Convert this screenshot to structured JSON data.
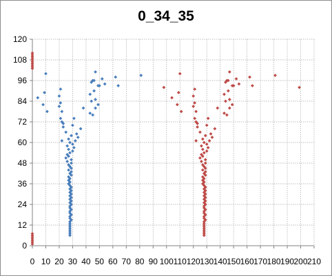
{
  "chart_data": {
    "type": "scatter",
    "title": "0_34_35",
    "xlabel": "",
    "ylabel": "",
    "xlim": [
      0,
      210
    ],
    "ylim": [
      0,
      120
    ],
    "x_ticks": [
      0,
      10,
      20,
      30,
      40,
      50,
      60,
      70,
      80,
      90,
      100,
      110,
      120,
      130,
      140,
      150,
      160,
      170,
      180,
      190,
      200,
      210
    ],
    "y_ticks": [
      0,
      12,
      24,
      36,
      48,
      60,
      72,
      84,
      96,
      108,
      120
    ],
    "grid": true,
    "legend": "none",
    "series": [
      {
        "color": "#4a7ebb",
        "points": [
          [
            28,
            6
          ],
          [
            28,
            7
          ],
          [
            28,
            8
          ],
          [
            28,
            9
          ],
          [
            28,
            10
          ],
          [
            28,
            11
          ],
          [
            28,
            12
          ],
          [
            28,
            13
          ],
          [
            28,
            14
          ],
          [
            29,
            15
          ],
          [
            28,
            16
          ],
          [
            28,
            17
          ],
          [
            29,
            18
          ],
          [
            28,
            19
          ],
          [
            28,
            20
          ],
          [
            29,
            21
          ],
          [
            28,
            22
          ],
          [
            28,
            23
          ],
          [
            29,
            24
          ],
          [
            28,
            25
          ],
          [
            29,
            26
          ],
          [
            28,
            27
          ],
          [
            29,
            28
          ],
          [
            28,
            29
          ],
          [
            29,
            30
          ],
          [
            28,
            31
          ],
          [
            29,
            32
          ],
          [
            28,
            33
          ],
          [
            29,
            34
          ],
          [
            28,
            35
          ],
          [
            27,
            36
          ],
          [
            28,
            37
          ],
          [
            27,
            38
          ],
          [
            28,
            39
          ],
          [
            27,
            40
          ],
          [
            29,
            41
          ],
          [
            28,
            42
          ],
          [
            29,
            43
          ],
          [
            27,
            44
          ],
          [
            29,
            45
          ],
          [
            28,
            46
          ],
          [
            27,
            47
          ],
          [
            29,
            48
          ],
          [
            26,
            49
          ],
          [
            29,
            50
          ],
          [
            25,
            51
          ],
          [
            27,
            52
          ],
          [
            26,
            53
          ],
          [
            28,
            54
          ],
          [
            30,
            55
          ],
          [
            27,
            56
          ],
          [
            31,
            57
          ],
          [
            26,
            58
          ],
          [
            30,
            59
          ],
          [
            28,
            60
          ],
          [
            32,
            61
          ],
          [
            27,
            62
          ],
          [
            34,
            63
          ],
          [
            29,
            64
          ],
          [
            33,
            65
          ],
          [
            25,
            66
          ],
          [
            36,
            68
          ],
          [
            30,
            70
          ],
          [
            23,
            71
          ],
          [
            31,
            74
          ],
          [
            22,
            72
          ],
          [
            21,
            74
          ],
          [
            23,
            69
          ],
          [
            38,
            80
          ],
          [
            20,
            81
          ],
          [
            21,
            83
          ],
          [
            22,
            78
          ],
          [
            20,
            87
          ],
          [
            21,
            91
          ],
          [
            45,
            76
          ],
          [
            43,
            77
          ],
          [
            47,
            80
          ],
          [
            47,
            85
          ],
          [
            44,
            84
          ],
          [
            49,
            82
          ],
          [
            43,
            88
          ],
          [
            46,
            90
          ],
          [
            49,
            93
          ],
          [
            44,
            95
          ],
          [
            45,
            96
          ],
          [
            46,
            96
          ],
          [
            47,
            101
          ],
          [
            50,
            93
          ],
          [
            52,
            97
          ],
          [
            54,
            94
          ],
          [
            62,
            98
          ],
          [
            64,
            93
          ],
          [
            81,
            99
          ],
          [
            10,
            100
          ],
          [
            4,
            86
          ],
          [
            8,
            82
          ],
          [
            11,
            78
          ],
          [
            9,
            89
          ],
          [
            22,
            61
          ]
        ]
      },
      {
        "color": "#be4b48",
        "points": [
          [
            128,
            6
          ],
          [
            128,
            7
          ],
          [
            128,
            8
          ],
          [
            128,
            9
          ],
          [
            128,
            10
          ],
          [
            128,
            11
          ],
          [
            128,
            12
          ],
          [
            128,
            13
          ],
          [
            128,
            14
          ],
          [
            129,
            15
          ],
          [
            128,
            16
          ],
          [
            128,
            17
          ],
          [
            129,
            18
          ],
          [
            128,
            19
          ],
          [
            128,
            20
          ],
          [
            129,
            21
          ],
          [
            128,
            22
          ],
          [
            128,
            23
          ],
          [
            129,
            24
          ],
          [
            128,
            25
          ],
          [
            129,
            26
          ],
          [
            128,
            27
          ],
          [
            129,
            28
          ],
          [
            128,
            29
          ],
          [
            129,
            30
          ],
          [
            128,
            31
          ],
          [
            129,
            32
          ],
          [
            128,
            33
          ],
          [
            129,
            34
          ],
          [
            128,
            35
          ],
          [
            127,
            36
          ],
          [
            128,
            37
          ],
          [
            127,
            38
          ],
          [
            128,
            39
          ],
          [
            127,
            40
          ],
          [
            129,
            41
          ],
          [
            128,
            42
          ],
          [
            129,
            43
          ],
          [
            127,
            44
          ],
          [
            129,
            45
          ],
          [
            128,
            46
          ],
          [
            127,
            47
          ],
          [
            129,
            48
          ],
          [
            126,
            49
          ],
          [
            129,
            50
          ],
          [
            125,
            51
          ],
          [
            127,
            52
          ],
          [
            126,
            53
          ],
          [
            128,
            54
          ],
          [
            130,
            55
          ],
          [
            127,
            56
          ],
          [
            131,
            57
          ],
          [
            126,
            58
          ],
          [
            130,
            59
          ],
          [
            128,
            60
          ],
          [
            132,
            61
          ],
          [
            127,
            62
          ],
          [
            134,
            63
          ],
          [
            129,
            64
          ],
          [
            133,
            65
          ],
          [
            125,
            66
          ],
          [
            136,
            68
          ],
          [
            130,
            70
          ],
          [
            123,
            71
          ],
          [
            131,
            74
          ],
          [
            122,
            72
          ],
          [
            121,
            74
          ],
          [
            123,
            69
          ],
          [
            138,
            80
          ],
          [
            120,
            81
          ],
          [
            121,
            83
          ],
          [
            122,
            78
          ],
          [
            120,
            87
          ],
          [
            121,
            91
          ],
          [
            145,
            76
          ],
          [
            143,
            77
          ],
          [
            147,
            80
          ],
          [
            147,
            85
          ],
          [
            144,
            84
          ],
          [
            149,
            82
          ],
          [
            143,
            88
          ],
          [
            146,
            90
          ],
          [
            149,
            93
          ],
          [
            144,
            95
          ],
          [
            145,
            96
          ],
          [
            146,
            96
          ],
          [
            147,
            101
          ],
          [
            150,
            93
          ],
          [
            152,
            97
          ],
          [
            154,
            94
          ],
          [
            162,
            98
          ],
          [
            164,
            93
          ],
          [
            181,
            99
          ],
          [
            110,
            100
          ],
          [
            104,
            86
          ],
          [
            108,
            82
          ],
          [
            111,
            78
          ],
          [
            109,
            89
          ],
          [
            122,
            61
          ],
          [
            98,
            92
          ],
          [
            199,
            92
          ]
        ]
      },
      {
        "color": "#be4b48",
        "points": [
          [
            0,
            1
          ],
          [
            0,
            2
          ],
          [
            0,
            3
          ],
          [
            0,
            4
          ],
          [
            0,
            5
          ],
          [
            0,
            6
          ],
          [
            0,
            7
          ],
          [
            0,
            103
          ],
          [
            0,
            104
          ],
          [
            0,
            105
          ],
          [
            0,
            106
          ],
          [
            0,
            107
          ],
          [
            0,
            108
          ],
          [
            0,
            109
          ],
          [
            0,
            110
          ],
          [
            0,
            111
          ],
          [
            0,
            112
          ]
        ]
      }
    ]
  }
}
